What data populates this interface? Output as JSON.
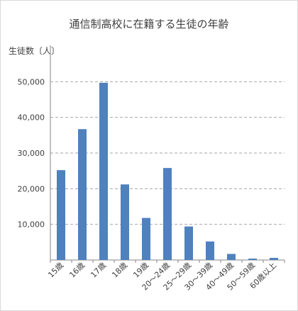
{
  "chart_data": {
    "type": "bar",
    "title": "通信制高校に在籍する生徒の年齢",
    "ylabel": "生徒数〔人〕",
    "xlabel": "",
    "categories": [
      "15歳",
      "16歳",
      "17歳",
      "18歳",
      "19歳",
      "20～24歳",
      "25～29歳",
      "30～39歳",
      "40～49歳",
      "50～59歳",
      "60歳以上"
    ],
    "values": [
      25200,
      36700,
      49700,
      21200,
      11800,
      25800,
      9400,
      5200,
      1700,
      400,
      600
    ],
    "ylim": [
      0,
      60000
    ],
    "yticks": [
      0,
      10000,
      20000,
      30000,
      40000,
      50000
    ],
    "ytick_labels": [
      "",
      "10,000",
      "20,000",
      "30,000",
      "40,000",
      "50,000"
    ],
    "grid": true,
    "grid_style": "dashed",
    "legend": "none",
    "colors": {
      "bar": "#4f81bd",
      "grid": "#a6a6a6",
      "axis": "#868686",
      "text": "#404040"
    }
  }
}
